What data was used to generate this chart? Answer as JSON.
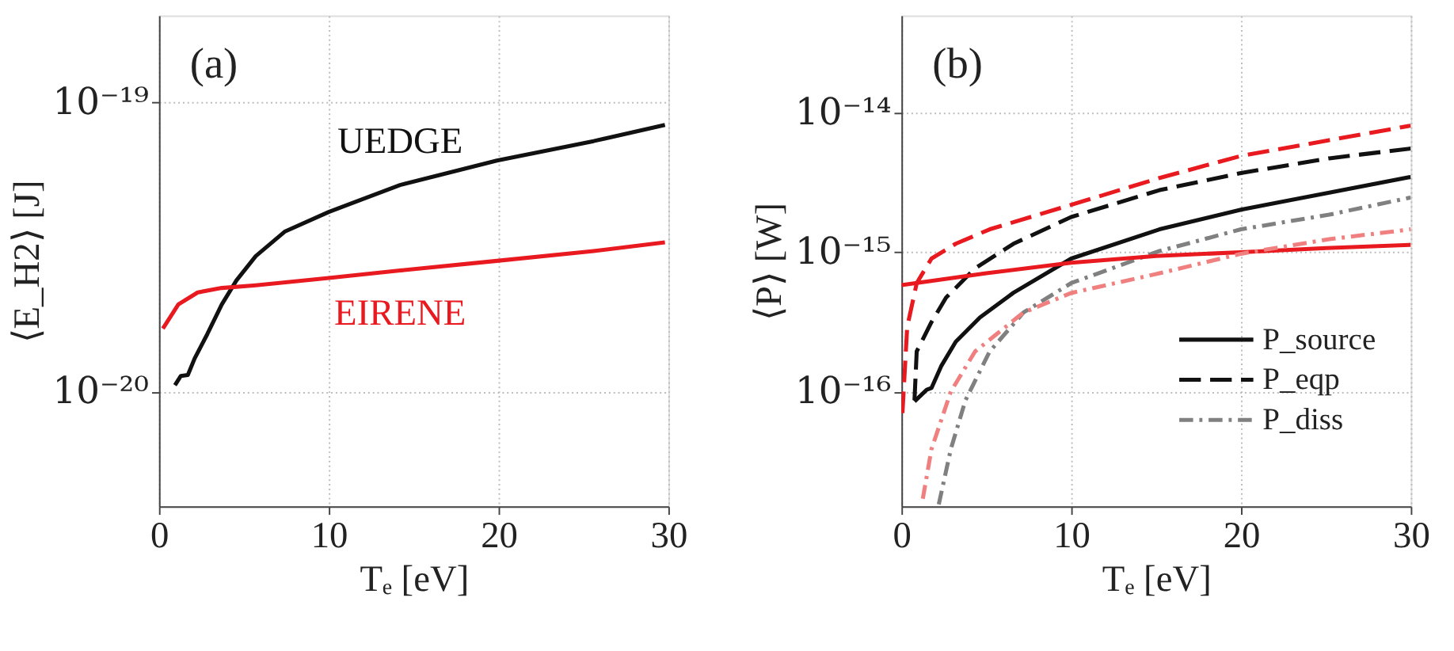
{
  "chart_data": [
    {
      "type": "line",
      "xlabel": "Tₑ [eV]",
      "ylabel": "⟨E_H2⟩ [J]",
      "xlim": [
        0,
        30
      ],
      "xticks": [
        0,
        10,
        20,
        30
      ],
      "ylim": [
        4e-21,
        2e-19
      ],
      "yticks": [
        {
          "value": 1e-20,
          "label": "10⁻²⁰"
        },
        {
          "value": 1e-19,
          "label": "10⁻¹⁹"
        }
      ],
      "log": "y",
      "grid": true,
      "legend": false,
      "annotations": [
        "(a)"
      ],
      "series": [
        {
          "name": "UEDGE",
          "color": "#111111",
          "line_style": "solid",
          "x": [
            0.94,
            1.28,
            1.7,
            2.1,
            2.85,
            3.7,
            4.56,
            5.7,
            7.4,
            10,
            14.2,
            19.9,
            25.6,
            29.8
          ],
          "values": [
            1.05e-20,
            1.13e-20,
            1.14e-20,
            1.3e-20,
            1.58e-20,
            2e-20,
            2.42e-20,
            2.94e-20,
            3.57e-20,
            4.18e-20,
            5.18e-20,
            6.29e-20,
            7.35e-20,
            8.36e-20
          ]
        },
        {
          "name": "EIRENE",
          "color": "#e8191f",
          "line_style": "solid",
          "x": [
            0.23,
            1.14,
            2.28,
            3.7,
            5.7,
            10,
            14.2,
            19.9,
            25.6,
            29.8
          ],
          "values": [
            1.65e-20,
            2e-20,
            2.2e-20,
            2.28e-20,
            2.33e-20,
            2.47e-20,
            2.62e-20,
            2.83e-20,
            3.06e-20,
            3.28e-20
          ]
        }
      ]
    },
    {
      "type": "line",
      "xlabel": "Tₑ [eV]",
      "ylabel": "⟨P⟩ [W]",
      "xlim": [
        0,
        30
      ],
      "xticks": [
        0,
        10,
        20,
        30
      ],
      "ylim": [
        1.5e-17,
        5e-14
      ],
      "yticks": [
        {
          "value": 1e-16,
          "label": "10⁻¹⁶"
        },
        {
          "value": 1e-15,
          "label": "10⁻¹⁵"
        },
        {
          "value": 1e-14,
          "label": "10⁻¹⁴"
        }
      ],
      "log": "y",
      "grid": true,
      "legend": "bottom right",
      "annotations": [
        "(b)"
      ],
      "series": [
        {
          "name": "P_source",
          "color": "#111111",
          "line_style": "solid",
          "x": [
            0.77,
            1.49,
            1.77,
            2.34,
            3.2,
            4.63,
            6.6,
            10,
            15.2,
            20,
            25.2,
            30
          ],
          "values": [
            8.5e-17,
            1.03e-16,
            1.06e-16,
            1.52e-16,
            2.28e-16,
            3.41e-16,
            5.12e-16,
            9e-16,
            1.46e-15,
            2.02e-15,
            2.68e-15,
            3.47e-15
          ]
        },
        {
          "name": "P_eqp",
          "color": "#111111",
          "line_style": "dashed",
          "x": [
            0.77,
            0.9,
            1.77,
            2.63,
            4.34,
            6.6,
            10,
            15.2,
            20,
            25.2,
            30
          ],
          "values": [
            8.65e-17,
            1.94e-16,
            3.15e-16,
            4.72e-16,
            7.66e-16,
            1.15e-15,
            1.79e-15,
            2.79e-15,
            3.7e-15,
            4.72e-15,
            5.55e-15
          ]
        },
        {
          "name": "P_diss",
          "color": "#808080",
          "line_style": "dashdot",
          "x": [
            2.2,
            2.91,
            3.77,
            5.2,
            7.2,
            10,
            15.2,
            20,
            25.2,
            30
          ],
          "values": [
            1.55e-17,
            3.86e-17,
            8.65e-17,
            1.94e-16,
            3.7e-16,
            6e-16,
            1.02e-15,
            1.46e-15,
            1.86e-15,
            2.47e-15
          ]
        },
        {
          "color": "#e8191f",
          "line_style": "solid",
          "x": [
            0,
            5,
            10,
            15,
            20,
            25,
            30
          ],
          "values": [
            5.8e-16,
            7.06e-16,
            8.4e-16,
            9.4e-16,
            1e-15,
            1.07e-15,
            1.13e-15
          ]
        },
        {
          "color": "#e8191f",
          "line_style": "dashed",
          "x": [
            0.06,
            0.34,
            0.9,
            1.77,
            3.2,
            5.2,
            10,
            15.2,
            20,
            25.2,
            30
          ],
          "values": [
            7e-17,
            2.9e-16,
            6e-16,
            9e-16,
            1.15e-15,
            1.46e-15,
            2.19e-15,
            3.41e-15,
            4.91e-15,
            6.37e-15,
            8.1e-15
          ]
        },
        {
          "color": "#f08080",
          "line_style": "dashdot",
          "x": [
            1.26,
            1.77,
            2.91,
            4.34,
            7.2,
            10,
            15.2,
            20,
            25.2,
            30
          ],
          "values": [
            1.7e-17,
            3.86e-17,
            1e-16,
            1.94e-16,
            3.7e-16,
            5.1e-16,
            7.06e-16,
            9.75e-16,
            1.24e-15,
            1.46e-15
          ]
        }
      ]
    }
  ]
}
